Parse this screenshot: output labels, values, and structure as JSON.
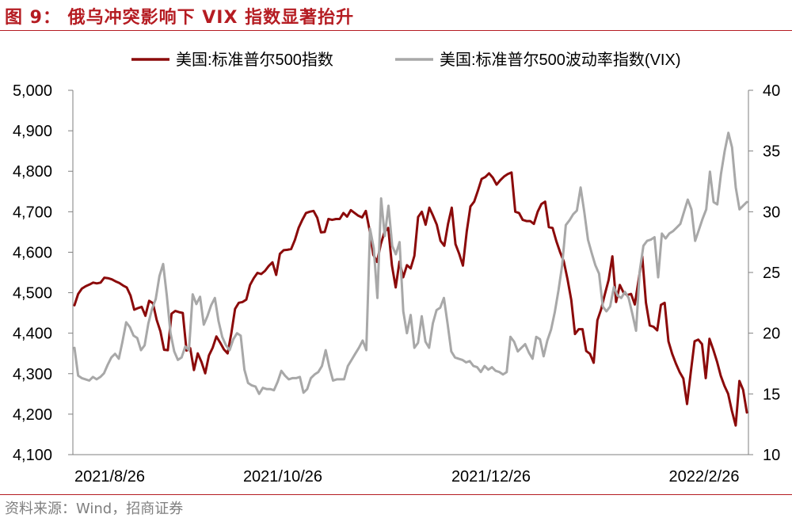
{
  "figure": {
    "title": "图 9：  俄乌冲突影响下 VIX 指数显著抬升",
    "source": "资料来源：Wind，招商证券"
  },
  "chart_data": {
    "type": "line",
    "legend_placement": "top",
    "grid": false,
    "x_tick_labels": [
      "2021/8/26",
      "2021/10/26",
      "2021/12/26",
      "2022/2/26"
    ],
    "left_axis": {
      "range": [
        4100,
        5000
      ],
      "ticks": [
        "4,100",
        "4,200",
        "4,300",
        "4,400",
        "4,500",
        "4,600",
        "4,700",
        "4,800",
        "4,900",
        "5,000"
      ]
    },
    "right_axis": {
      "range": [
        10,
        40
      ],
      "ticks": [
        "10",
        "15",
        "20",
        "25",
        "30",
        "35",
        "40"
      ]
    },
    "series": [
      {
        "name": "美国:标准普尔500指数",
        "axis": "left",
        "color": "#8b0a0a",
        "values": [
          4469,
          4497,
          4510,
          4516,
          4520,
          4525,
          4523,
          4525,
          4537,
          4536,
          4533,
          4528,
          4524,
          4518,
          4513,
          4493,
          4458,
          4462,
          4465,
          4443,
          4480,
          4474,
          4433,
          4405,
          4359,
          4358,
          4448,
          4455,
          4452,
          4450,
          4357,
          4363,
          4309,
          4350,
          4329,
          4301,
          4345,
          4364,
          4392,
          4377,
          4360,
          4350,
          4400,
          4460,
          4475,
          4477,
          4483,
          4519,
          4536,
          4549,
          4546,
          4554,
          4566,
          4575,
          4544,
          4596,
          4605,
          4606,
          4608,
          4630,
          4660,
          4680,
          4697,
          4700,
          4702,
          4685,
          4649,
          4650,
          4682,
          4680,
          4682,
          4682,
          4697,
          4688,
          4704,
          4697,
          4690,
          4686,
          4702,
          4655,
          4594,
          4576,
          4620,
          4650,
          4660,
          4567,
          4513,
          4577,
          4538,
          4568,
          4560,
          4591,
          4687,
          4700,
          4668,
          4710,
          4690,
          4668,
          4628,
          4616,
          4670,
          4710,
          4620,
          4596,
          4567,
          4651,
          4713,
          4725,
          4752,
          4781,
          4786,
          4795,
          4784,
          4767,
          4778,
          4787,
          4793,
          4797,
          4700,
          4697,
          4680,
          4677,
          4677,
          4670,
          4700,
          4719,
          4725,
          4662,
          4660,
          4627,
          4600,
          4577,
          4533,
          4482,
          4398,
          4410,
          4410,
          4356,
          4349,
          4327,
          4432,
          4459,
          4497,
          4532,
          4590,
          4477,
          4519,
          4500,
          4494,
          4497,
          4471,
          4530,
          4590,
          4475,
          4419,
          4416,
          4407,
          4470,
          4475,
          4380,
          4349,
          4325,
          4304,
          4288,
          4225,
          4305,
          4380,
          4384,
          4373,
          4289,
          4386,
          4360,
          4330,
          4295,
          4270,
          4250,
          4208,
          4172,
          4282,
          4260,
          4204
        ]
      },
      {
        "name": "美国:标准普尔500波动率指数(VIX)",
        "axis": "right",
        "color": "#a8a8a8",
        "values": [
          18.8,
          16.5,
          16.3,
          16.2,
          16.1,
          16.4,
          16.2,
          16.4,
          16.7,
          17.4,
          18.0,
          18.3,
          17.9,
          19.3,
          20.9,
          20.5,
          19.8,
          19.6,
          18.6,
          19.0,
          20.8,
          22.0,
          22.8,
          24.7,
          25.7,
          23.1,
          20.0,
          18.5,
          17.8,
          18.0,
          18.9,
          18.6,
          23.2,
          22.4,
          23.0,
          20.7,
          21.4,
          22.3,
          22.9,
          21.0,
          19.7,
          19.0,
          18.6,
          19.5,
          20.0,
          19.8,
          17.0,
          15.9,
          15.7,
          15.6,
          15.0,
          15.5,
          15.4,
          15.4,
          15.3,
          16.0,
          16.9,
          16.5,
          16.2,
          16.3,
          16.3,
          16.4,
          15.1,
          15.4,
          16.3,
          16.6,
          16.8,
          17.3,
          18.6,
          17.2,
          16.1,
          16.2,
          16.2,
          16.2,
          17.3,
          17.8,
          18.3,
          18.8,
          19.4,
          18.6,
          28.6,
          27.0,
          22.9,
          31.1,
          28.0,
          30.5,
          27.2,
          26.5,
          27.5,
          21.8,
          20.0,
          21.5,
          18.8,
          19.2,
          21.4,
          19.3,
          18.8,
          20.8,
          21.9,
          22.1,
          22.9,
          20.8,
          18.5,
          18.0,
          17.9,
          17.8,
          17.6,
          17.7,
          17.3,
          17.2,
          16.8,
          17.3,
          17.0,
          17.2,
          16.9,
          16.8,
          16.6,
          16.8,
          19.7,
          19.3,
          18.5,
          18.8,
          19.1,
          18.4,
          17.9,
          19.7,
          19.5,
          18.1,
          19.4,
          20.3,
          21.7,
          23.5,
          25.6,
          28.9,
          29.3,
          29.8,
          30.1,
          32.0,
          30.0,
          27.7,
          26.6,
          25.6,
          24.9,
          22.2,
          21.8,
          22.2,
          23.8,
          23.1,
          22.9,
          23.4,
          22.9,
          21.6,
          20.2,
          25.1,
          27.2,
          27.6,
          27.7,
          27.9,
          24.6,
          28.2,
          27.8,
          28.2,
          28.4,
          28.7,
          29.0,
          30.0,
          31.0,
          30.2,
          27.6,
          28.5,
          29.4,
          30.2,
          33.3,
          30.8,
          30.6,
          33.1,
          35.0,
          36.5,
          35.3,
          32.0,
          30.2,
          30.5,
          30.8
        ]
      }
    ]
  }
}
